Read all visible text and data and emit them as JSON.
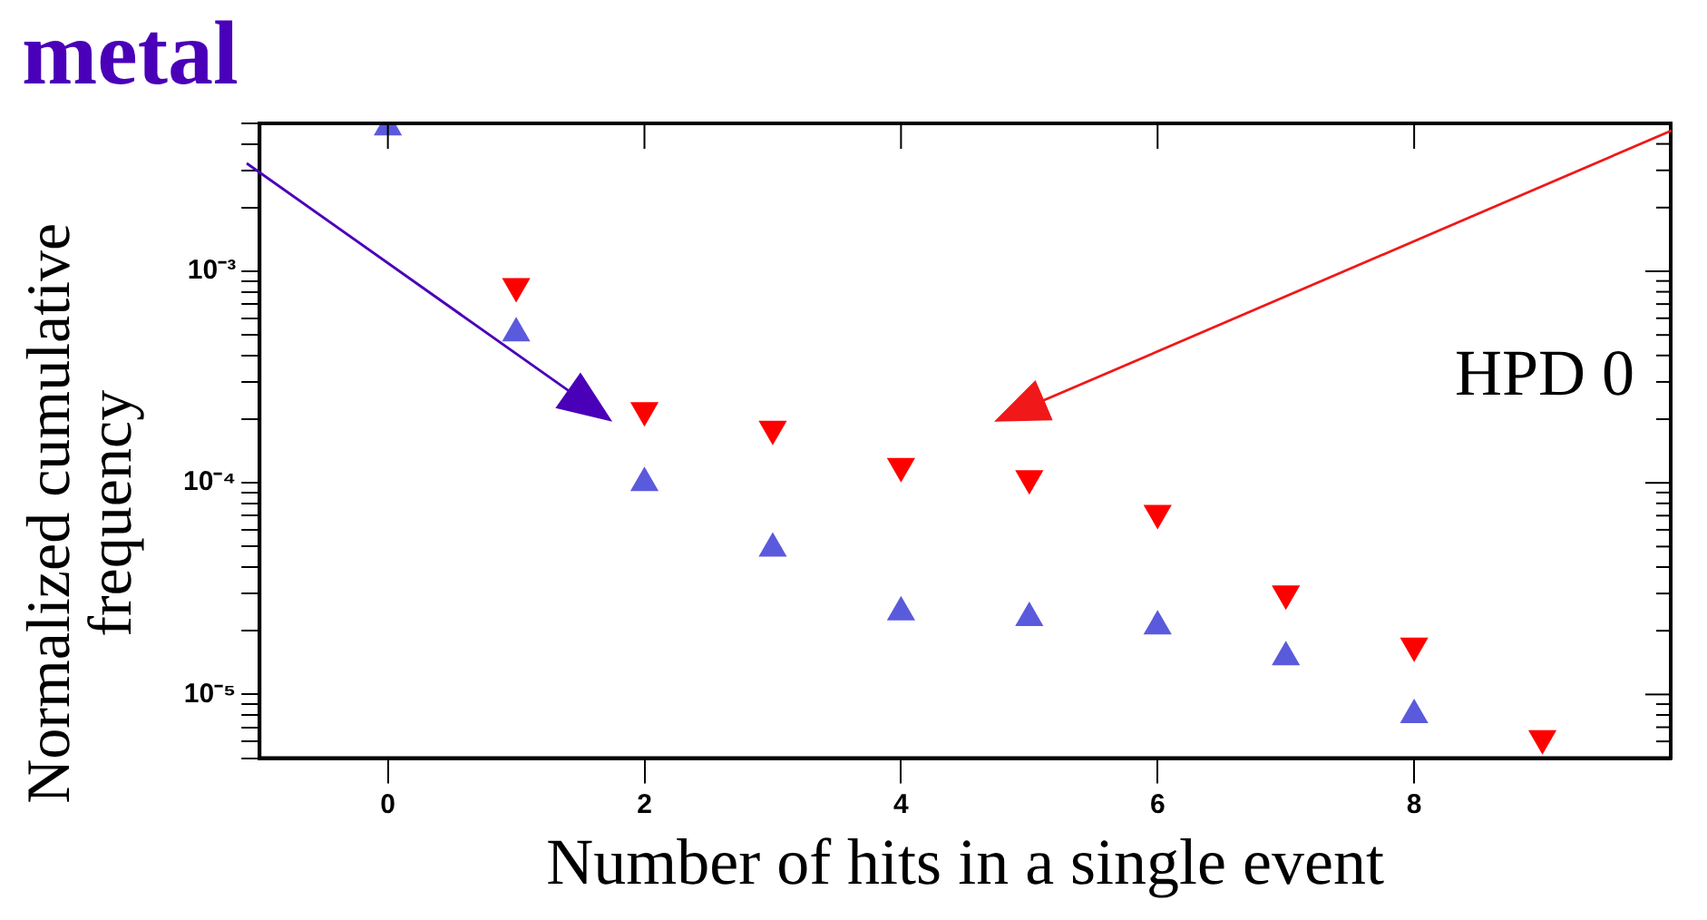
{
  "chart_data": {
    "type": "scatter",
    "xlabel": "Number of hits in a single event",
    "ylabel": "Normalized cumulative frequency",
    "log": "y",
    "grid": false,
    "legend": false,
    "marker": "triangle",
    "xlim": [
      -1,
      10
    ],
    "xticks": [
      0,
      2,
      4,
      6,
      8
    ],
    "ylim": [
      5e-06,
      0.005
    ],
    "yticks": [
      {
        "value": 5e-06,
        "label": null
      },
      {
        "value": 6e-06,
        "label": null
      },
      {
        "value": 7e-06,
        "label": null
      },
      {
        "value": 8e-06,
        "label": null
      },
      {
        "value": 9e-06,
        "label": null
      },
      {
        "value": 1e-05,
        "label": "10⁻⁵"
      },
      {
        "value": 2e-05,
        "label": null
      },
      {
        "value": 3e-05,
        "label": null
      },
      {
        "value": 4e-05,
        "label": null
      },
      {
        "value": 5e-05,
        "label": null
      },
      {
        "value": 6e-05,
        "label": null
      },
      {
        "value": 7e-05,
        "label": null
      },
      {
        "value": 8e-05,
        "label": null
      },
      {
        "value": 9e-05,
        "label": null
      },
      {
        "value": 0.0001,
        "label": "10⁻⁴"
      },
      {
        "value": 0.0002,
        "label": null
      },
      {
        "value": 0.0003,
        "label": null
      },
      {
        "value": 0.0004,
        "label": null
      },
      {
        "value": 0.0005,
        "label": null
      },
      {
        "value": 0.0006,
        "label": null
      },
      {
        "value": 0.0007,
        "label": null
      },
      {
        "value": 0.0008,
        "label": null
      },
      {
        "value": 0.0009,
        "label": null
      },
      {
        "value": 0.001,
        "label": "10⁻³"
      },
      {
        "value": 0.002,
        "label": null
      },
      {
        "value": 0.003,
        "label": null
      },
      {
        "value": 0.004,
        "label": null
      },
      {
        "value": 0.005,
        "label": null
      }
    ],
    "series": [
      {
        "color": "#5a5adc",
        "x": [
          0,
          1,
          2,
          3,
          4,
          5,
          6,
          7,
          8
        ],
        "values": [
          0.0048,
          0.00051,
          0.0001,
          4.9e-05,
          2.45e-05,
          2.3e-05,
          2.1e-05,
          1.5e-05,
          8e-06
        ]
      },
      {
        "color": "#ff0000",
        "x": [
          1,
          2,
          3,
          4,
          5,
          6,
          7,
          8,
          9
        ],
        "values": [
          0.00085,
          0.00022,
          0.00018,
          0.00012,
          0.000105,
          7.2e-05,
          3e-05,
          1.7e-05,
          6.2e-06
        ]
      }
    ],
    "annotations": [
      "HPD 0",
      "metal"
    ]
  }
}
